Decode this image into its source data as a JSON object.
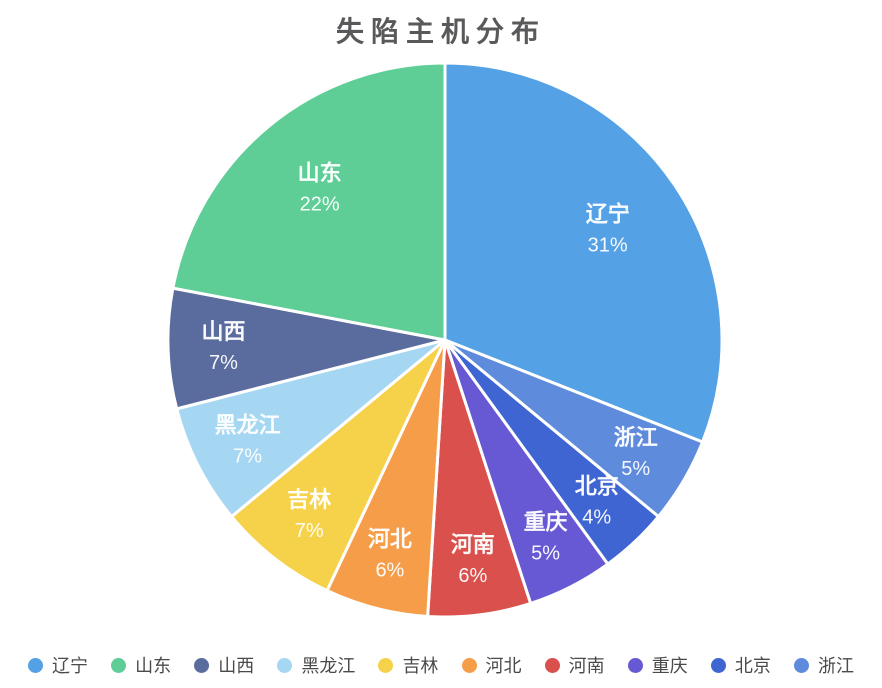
{
  "page": {
    "title": "失陷主机分布"
  },
  "style": {
    "background": "#FFFFFF",
    "title_color": "#58595B",
    "slice_label_color": "#FFFFFF",
    "legend_text_color": "#4A4A4A",
    "slice_border_color": "#FFFFFF"
  },
  "chart_data": {
    "type": "pie",
    "title": "失陷主机分布",
    "value_unit": "%",
    "start_angle": "top",
    "direction": "clockwise",
    "legend_position": "bottom",
    "labels_inside_slices": true,
    "slices": [
      {
        "name": "辽宁",
        "value": 31,
        "percent_label": "31%",
        "color": "#55A1E5"
      },
      {
        "name": "浙江",
        "value": 5,
        "percent_label": "5%",
        "color": "#5E8BDC"
      },
      {
        "name": "北京",
        "value": 4,
        "percent_label": "4%",
        "color": "#3E65D2"
      },
      {
        "name": "重庆",
        "value": 5,
        "percent_label": "5%",
        "color": "#6659D3"
      },
      {
        "name": "河南",
        "value": 6,
        "percent_label": "6%",
        "color": "#D9504C"
      },
      {
        "name": "河北",
        "value": 6,
        "percent_label": "6%",
        "color": "#F59D48"
      },
      {
        "name": "吉林",
        "value": 7,
        "percent_label": "7%",
        "color": "#F6D24A"
      },
      {
        "name": "黑龙江",
        "value": 7,
        "percent_label": "7%",
        "color": "#A6D7F2"
      },
      {
        "name": "山西",
        "value": 7,
        "percent_label": "7%",
        "color": "#5A6B9E"
      },
      {
        "name": "山东",
        "value": 22,
        "percent_label": "22%",
        "color": "#5ECD96"
      }
    ],
    "legend": [
      {
        "label": "辽宁",
        "color": "#55A1E5"
      },
      {
        "label": "山东",
        "color": "#5ECD96"
      },
      {
        "label": "山西",
        "color": "#5A6B9E"
      },
      {
        "label": "黑龙江",
        "color": "#A6D7F2"
      },
      {
        "label": "吉林",
        "color": "#F6D24A"
      },
      {
        "label": "河北",
        "color": "#F59D48"
      },
      {
        "label": "河南",
        "color": "#D9504C"
      },
      {
        "label": "重庆",
        "color": "#6659D3"
      },
      {
        "label": "北京",
        "color": "#3E65D2"
      },
      {
        "label": "浙江",
        "color": "#5E8BDC"
      }
    ]
  }
}
